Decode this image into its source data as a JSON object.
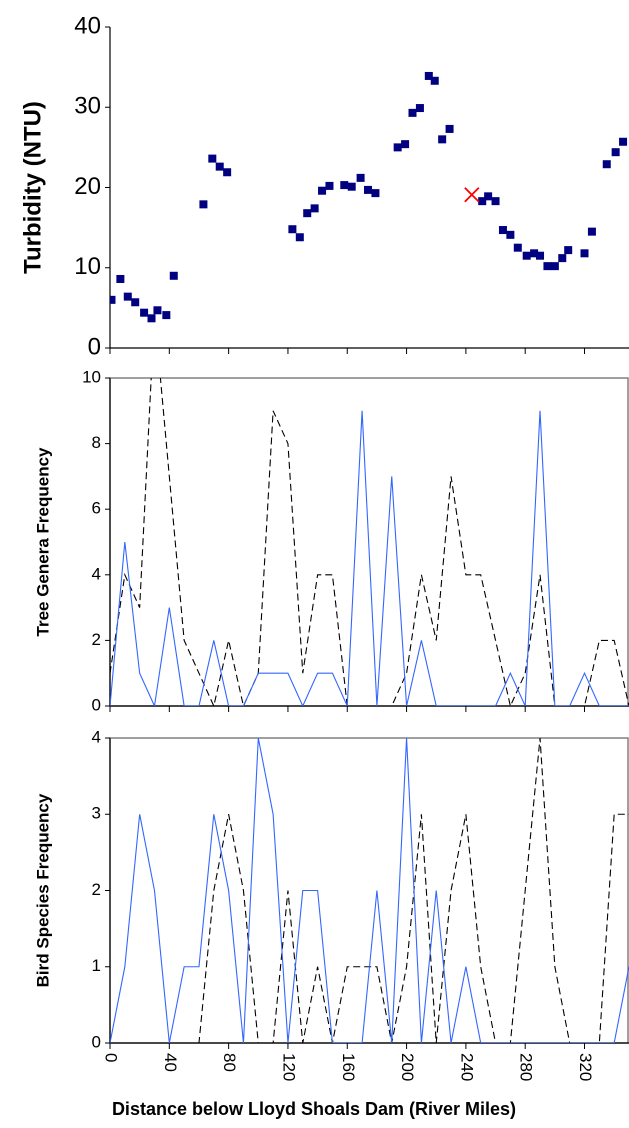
{
  "chart_data": [
    {
      "type": "scatter",
      "ylabel": "Turbidity (NTU)",
      "xlim": [
        0,
        350
      ],
      "ylim": [
        0,
        40
      ],
      "yticks": [
        0,
        10,
        20,
        30,
        40
      ],
      "series": [
        {
          "color": "#000080",
          "marker": "square",
          "x": [
            1,
            7,
            12,
            17,
            23,
            28,
            32,
            38,
            43,
            63,
            69,
            74,
            79,
            123,
            128,
            133,
            138,
            143,
            148,
            158,
            163,
            169,
            174,
            179,
            194,
            199,
            204,
            209,
            215,
            219,
            224,
            229,
            251,
            255,
            260,
            265,
            270,
            275,
            281,
            286,
            290,
            295,
            300,
            305,
            309,
            320,
            325,
            335,
            341,
            346
          ],
          "values": [
            6,
            8.6,
            6.4,
            5.7,
            4.4,
            3.7,
            4.7,
            4.1,
            9,
            17.9,
            23.6,
            22.6,
            21.9,
            14.8,
            13.8,
            16.8,
            17.4,
            19.6,
            20.2,
            20.3,
            20.1,
            21.2,
            19.7,
            19.3,
            25,
            25.4,
            29.3,
            29.9,
            33.9,
            33.3,
            26,
            27.3,
            18.3,
            18.9,
            18.3,
            14.7,
            14.1,
            12.5,
            11.5,
            11.8,
            11.5,
            10.2,
            10.2,
            11.2,
            12.2,
            11.8,
            14.5,
            22.9,
            24.4,
            25.7
          ]
        },
        {
          "color": "#ff0000",
          "marker": "x",
          "x": [
            244
          ],
          "values": [
            19.1
          ]
        }
      ]
    },
    {
      "type": "line",
      "ylabel": "Tree Genera Frequency",
      "xlim": [
        0,
        350
      ],
      "ylim": [
        0,
        10
      ],
      "yticks": [
        0,
        2,
        4,
        6,
        8,
        10
      ],
      "x": [
        0,
        10,
        20,
        30,
        40,
        50,
        60,
        70,
        80,
        90,
        100,
        110,
        120,
        130,
        140,
        150,
        160,
        170,
        180,
        190,
        200,
        210,
        220,
        230,
        240,
        250,
        260,
        270,
        280,
        290,
        300,
        310,
        320,
        330,
        340,
        350
      ],
      "series": [
        {
          "color": "#000000",
          "dashed": true,
          "values": [
            1,
            4,
            3,
            12,
            7,
            2,
            1,
            0,
            2,
            0,
            1,
            9,
            8,
            1,
            4,
            4,
            0,
            0,
            0,
            0,
            1,
            4,
            2,
            7,
            4,
            4,
            2,
            0,
            1,
            4,
            0,
            0,
            0,
            2,
            2,
            0
          ]
        },
        {
          "color": "#3366ff",
          "dashed": false,
          "values": [
            0,
            5,
            1,
            0,
            3,
            0,
            0,
            2,
            0,
            0,
            1,
            1,
            1,
            0,
            1,
            1,
            0,
            9,
            0,
            7,
            0,
            2,
            0,
            0,
            0,
            0,
            0,
            1,
            0,
            9,
            0,
            0,
            1,
            0,
            0,
            0
          ]
        }
      ]
    },
    {
      "type": "line",
      "ylabel": "Bird Species Frequency",
      "xlabel": "Distance below Lloyd Shoals Dam (River Miles)",
      "xlim": [
        0,
        350
      ],
      "xticks": [
        0,
        40,
        80,
        120,
        160,
        200,
        240,
        280,
        320
      ],
      "ylim": [
        0,
        4
      ],
      "yticks": [
        0,
        1,
        2,
        3,
        4
      ],
      "x": [
        0,
        10,
        20,
        30,
        40,
        50,
        60,
        70,
        80,
        90,
        100,
        110,
        120,
        130,
        140,
        150,
        160,
        170,
        180,
        190,
        200,
        210,
        220,
        230,
        240,
        250,
        260,
        270,
        280,
        290,
        300,
        310,
        320,
        330,
        340,
        350
      ],
      "series": [
        {
          "color": "#000000",
          "dashed": true,
          "values": [
            0,
            0,
            0,
            0,
            0,
            0,
            0,
            2,
            3,
            2,
            0,
            0,
            2,
            0,
            1,
            0,
            1,
            1,
            1,
            0,
            1,
            3,
            0,
            2,
            3,
            1,
            0,
            0,
            2,
            4,
            1,
            0,
            0,
            0,
            3,
            3
          ]
        },
        {
          "color": "#3366ff",
          "dashed": false,
          "values": [
            0,
            1,
            3,
            2,
            0,
            1,
            1,
            3,
            2,
            0,
            4,
            3,
            0,
            2,
            2,
            0,
            0,
            0,
            2,
            0,
            4,
            0,
            2,
            0,
            1,
            0,
            0,
            0,
            0,
            0,
            0,
            0,
            0,
            0,
            0,
            1
          ]
        }
      ]
    }
  ]
}
